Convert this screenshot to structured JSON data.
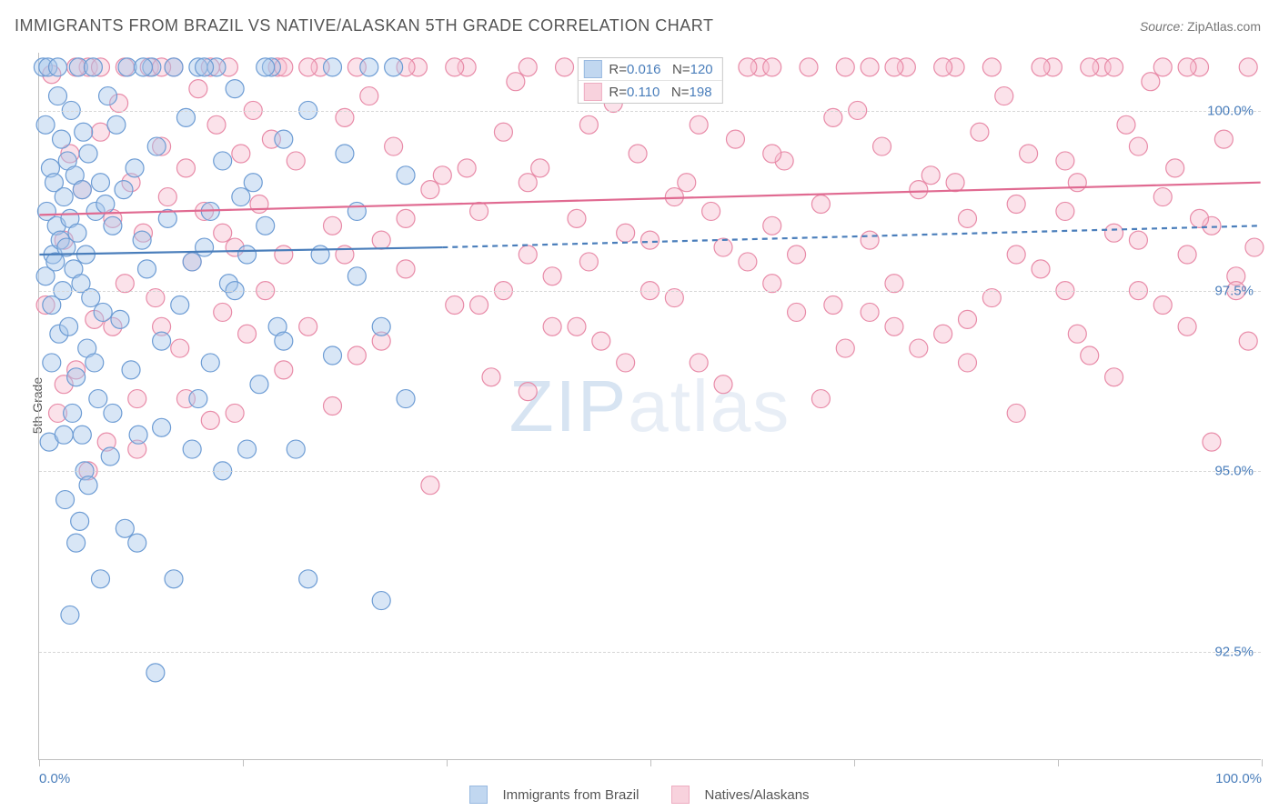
{
  "title": "IMMIGRANTS FROM BRAZIL VS NATIVE/ALASKAN 5TH GRADE CORRELATION CHART",
  "source_label": "Source:",
  "source_value": "ZipAtlas.com",
  "y_axis_label": "5th Grade",
  "watermark_left": "ZIP",
  "watermark_right": "atlas",
  "chart": {
    "type": "scatter",
    "background_color": "#ffffff",
    "grid_color": "#d6d6d6",
    "axis_color": "#bfbfbf",
    "tick_label_color": "#4a7ebb",
    "tick_fontsize": 15,
    "title_fontsize": 18,
    "title_color": "#555555",
    "xlim": [
      0,
      100
    ],
    "ylim": [
      91.0,
      100.8
    ],
    "x_ticks": [
      0,
      16.67,
      33.33,
      50,
      66.67,
      83.33,
      100
    ],
    "x_tick_labels": {
      "0": "0.0%",
      "100": "100.0%"
    },
    "y_gridlines": [
      92.5,
      95.0,
      97.5,
      100.0
    ],
    "y_tick_labels": [
      "92.5%",
      "95.0%",
      "97.5%",
      "100.0%"
    ],
    "marker_radius": 10,
    "marker_opacity": 0.45,
    "marker_stroke_width": 1.2,
    "trend_line_width": 2.2,
    "trend_dash_pattern": "6,5"
  },
  "series": [
    {
      "id": "brazil",
      "label": "Immigrants from Brazil",
      "fill_color": "#a8c7eb",
      "stroke_color": "#6d9cd4",
      "line_color": "#4a7ebb",
      "R": "0.016",
      "N": "120",
      "trend": {
        "x0": 0,
        "y0": 98.0,
        "x1_solid": 33,
        "y1_solid": 98.1,
        "x1": 100,
        "y1": 98.4
      },
      "points": [
        [
          0.3,
          100.6
        ],
        [
          0.5,
          97.7
        ],
        [
          0.6,
          98.6
        ],
        [
          0.7,
          100.6
        ],
        [
          0.8,
          95.4
        ],
        [
          0.9,
          99.2
        ],
        [
          1.0,
          97.3
        ],
        [
          1.1,
          98.0
        ],
        [
          1.2,
          99.0
        ],
        [
          1.3,
          97.9
        ],
        [
          1.4,
          98.4
        ],
        [
          1.5,
          100.6
        ],
        [
          1.6,
          96.9
        ],
        [
          1.7,
          98.2
        ],
        [
          1.8,
          99.6
        ],
        [
          1.9,
          97.5
        ],
        [
          2.0,
          98.8
        ],
        [
          2.1,
          94.6
        ],
        [
          2.2,
          98.1
        ],
        [
          2.3,
          99.3
        ],
        [
          2.4,
          97.0
        ],
        [
          2.5,
          98.5
        ],
        [
          2.6,
          100.0
        ],
        [
          2.7,
          95.8
        ],
        [
          2.8,
          97.8
        ],
        [
          2.9,
          99.1
        ],
        [
          3.0,
          96.3
        ],
        [
          3.1,
          98.3
        ],
        [
          3.2,
          100.6
        ],
        [
          3.3,
          94.3
        ],
        [
          3.4,
          97.6
        ],
        [
          3.5,
          98.9
        ],
        [
          3.6,
          99.7
        ],
        [
          3.7,
          95.0
        ],
        [
          3.8,
          98.0
        ],
        [
          3.9,
          96.7
        ],
        [
          4.0,
          99.4
        ],
        [
          4.2,
          97.4
        ],
        [
          4.4,
          100.6
        ],
        [
          4.6,
          98.6
        ],
        [
          4.8,
          96.0
        ],
        [
          5.0,
          99.0
        ],
        [
          5.2,
          97.2
        ],
        [
          5.4,
          98.7
        ],
        [
          5.6,
          100.2
        ],
        [
          5.8,
          95.2
        ],
        [
          6.0,
          98.4
        ],
        [
          6.3,
          99.8
        ],
        [
          6.6,
          97.1
        ],
        [
          6.9,
          98.9
        ],
        [
          7.2,
          100.6
        ],
        [
          7.5,
          96.4
        ],
        [
          7.8,
          99.2
        ],
        [
          8.1,
          95.5
        ],
        [
          8.4,
          98.2
        ],
        [
          8.8,
          97.8
        ],
        [
          9.2,
          100.6
        ],
        [
          9.6,
          99.5
        ],
        [
          10.0,
          96.8
        ],
        [
          10.5,
          98.5
        ],
        [
          11.0,
          100.6
        ],
        [
          11.5,
          97.3
        ],
        [
          12.0,
          99.9
        ],
        [
          12.5,
          95.3
        ],
        [
          13.0,
          100.6
        ],
        [
          13.5,
          98.1
        ],
        [
          14.0,
          96.5
        ],
        [
          14.5,
          100.6
        ],
        [
          15.0,
          99.3
        ],
        [
          15.5,
          97.6
        ],
        [
          16.0,
          100.3
        ],
        [
          16.5,
          98.8
        ],
        [
          17.0,
          95.3
        ],
        [
          17.5,
          99.0
        ],
        [
          18.0,
          96.2
        ],
        [
          18.5,
          98.4
        ],
        [
          19.0,
          100.6
        ],
        [
          19.5,
          97.0
        ],
        [
          20.0,
          99.6
        ],
        [
          21.0,
          95.3
        ],
        [
          22.0,
          100.0
        ],
        [
          23.0,
          98.0
        ],
        [
          24.0,
          96.6
        ],
        [
          25.0,
          99.4
        ],
        [
          26.0,
          97.7
        ],
        [
          27.0,
          100.6
        ],
        [
          28.0,
          93.2
        ],
        [
          29.0,
          100.6
        ],
        [
          30.0,
          99.1
        ],
        [
          5.0,
          93.5
        ],
        [
          7.0,
          94.2
        ],
        [
          9.5,
          92.2
        ],
        [
          11.0,
          93.5
        ],
        [
          4.0,
          94.8
        ],
        [
          2.5,
          93.0
        ],
        [
          3.5,
          95.5
        ],
        [
          1.0,
          96.5
        ],
        [
          0.5,
          99.8
        ],
        [
          1.5,
          100.2
        ],
        [
          2.0,
          95.5
        ],
        [
          3.0,
          94.0
        ],
        [
          4.5,
          96.5
        ],
        [
          6.0,
          95.8
        ],
        [
          8.0,
          94.0
        ],
        [
          10.0,
          95.6
        ],
        [
          12.5,
          97.9
        ],
        [
          14.0,
          98.6
        ],
        [
          16.0,
          97.5
        ],
        [
          18.5,
          100.6
        ],
        [
          22.0,
          93.5
        ],
        [
          13.0,
          96.0
        ],
        [
          15.0,
          95.0
        ],
        [
          17.0,
          98.0
        ],
        [
          20.0,
          96.8
        ],
        [
          24.0,
          100.6
        ],
        [
          26.0,
          98.6
        ],
        [
          28.0,
          97.0
        ],
        [
          30.0,
          96.0
        ],
        [
          13.5,
          100.6
        ],
        [
          8.5,
          100.6
        ]
      ]
    },
    {
      "id": "natives",
      "label": "Natives/Alaskans",
      "fill_color": "#f6bfd0",
      "stroke_color": "#e88ba8",
      "line_color": "#e06a91",
      "R": "0.110",
      "N": "198",
      "trend": {
        "x0": 0,
        "y0": 98.55,
        "x1_solid": 100,
        "y1_solid": 99.0,
        "x1": 100,
        "y1": 99.0
      },
      "points": [
        [
          0.5,
          97.3
        ],
        [
          1.0,
          100.5
        ],
        [
          1.5,
          95.8
        ],
        [
          2.0,
          98.2
        ],
        [
          2.5,
          99.4
        ],
        [
          3.0,
          96.4
        ],
        [
          3.5,
          98.9
        ],
        [
          4.0,
          100.6
        ],
        [
          4.5,
          97.1
        ],
        [
          5.0,
          99.7
        ],
        [
          5.5,
          95.4
        ],
        [
          6.0,
          98.5
        ],
        [
          6.5,
          100.1
        ],
        [
          7.0,
          97.6
        ],
        [
          7.5,
          99.0
        ],
        [
          8.0,
          96.0
        ],
        [
          8.5,
          98.3
        ],
        [
          9.0,
          100.6
        ],
        [
          9.5,
          97.4
        ],
        [
          10.0,
          99.5
        ],
        [
          10.5,
          98.8
        ],
        [
          11.0,
          100.6
        ],
        [
          11.5,
          96.7
        ],
        [
          12.0,
          99.2
        ],
        [
          12.5,
          97.9
        ],
        [
          13.0,
          100.3
        ],
        [
          13.5,
          98.6
        ],
        [
          14.0,
          95.7
        ],
        [
          14.5,
          99.8
        ],
        [
          15.0,
          97.2
        ],
        [
          15.5,
          100.6
        ],
        [
          16.0,
          98.1
        ],
        [
          16.5,
          99.4
        ],
        [
          17.0,
          96.9
        ],
        [
          17.5,
          100.0
        ],
        [
          18.0,
          98.7
        ],
        [
          18.5,
          97.5
        ],
        [
          19.0,
          99.6
        ],
        [
          19.5,
          100.6
        ],
        [
          20.0,
          98.0
        ],
        [
          21.0,
          99.3
        ],
        [
          22.0,
          97.0
        ],
        [
          23.0,
          100.6
        ],
        [
          24.0,
          98.4
        ],
        [
          25.0,
          99.9
        ],
        [
          26.0,
          96.6
        ],
        [
          27.0,
          100.2
        ],
        [
          28.0,
          98.2
        ],
        [
          29.0,
          99.5
        ],
        [
          30.0,
          97.8
        ],
        [
          31.0,
          100.6
        ],
        [
          32.0,
          98.9
        ],
        [
          33.0,
          99.1
        ],
        [
          34.0,
          97.3
        ],
        [
          35.0,
          100.6
        ],
        [
          36.0,
          98.6
        ],
        [
          37.0,
          96.3
        ],
        [
          38.0,
          99.7
        ],
        [
          39.0,
          100.4
        ],
        [
          40.0,
          98.0
        ],
        [
          41.0,
          99.2
        ],
        [
          42.0,
          97.7
        ],
        [
          43.0,
          100.6
        ],
        [
          44.0,
          98.5
        ],
        [
          45.0,
          99.8
        ],
        [
          46.0,
          96.8
        ],
        [
          47.0,
          100.1
        ],
        [
          48.0,
          98.3
        ],
        [
          49.0,
          99.4
        ],
        [
          50.0,
          97.5
        ],
        [
          51.0,
          100.6
        ],
        [
          52.0,
          98.8
        ],
        [
          53.0,
          99.0
        ],
        [
          54.0,
          96.5
        ],
        [
          55.0,
          100.3
        ],
        [
          56.0,
          98.1
        ],
        [
          57.0,
          99.6
        ],
        [
          58.0,
          97.9
        ],
        [
          59.0,
          100.6
        ],
        [
          60.0,
          98.4
        ],
        [
          61.0,
          99.3
        ],
        [
          62.0,
          97.2
        ],
        [
          63.0,
          100.6
        ],
        [
          64.0,
          98.7
        ],
        [
          65.0,
          99.9
        ],
        [
          66.0,
          96.7
        ],
        [
          67.0,
          100.0
        ],
        [
          68.0,
          98.2
        ],
        [
          69.0,
          99.5
        ],
        [
          70.0,
          97.6
        ],
        [
          71.0,
          100.6
        ],
        [
          72.0,
          98.9
        ],
        [
          73.0,
          99.1
        ],
        [
          74.0,
          96.9
        ],
        [
          75.0,
          100.6
        ],
        [
          76.0,
          98.5
        ],
        [
          77.0,
          99.7
        ],
        [
          78.0,
          97.4
        ],
        [
          79.0,
          100.2
        ],
        [
          80.0,
          98.0
        ],
        [
          81.0,
          99.4
        ],
        [
          82.0,
          97.8
        ],
        [
          83.0,
          100.6
        ],
        [
          84.0,
          98.6
        ],
        [
          85.0,
          99.0
        ],
        [
          86.0,
          96.6
        ],
        [
          87.0,
          100.6
        ],
        [
          88.0,
          98.3
        ],
        [
          89.0,
          99.8
        ],
        [
          90.0,
          97.5
        ],
        [
          91.0,
          100.4
        ],
        [
          92.0,
          98.8
        ],
        [
          93.0,
          99.2
        ],
        [
          94.0,
          97.0
        ],
        [
          95.0,
          100.6
        ],
        [
          96.0,
          98.4
        ],
        [
          97.0,
          99.6
        ],
        [
          98.0,
          97.7
        ],
        [
          99.0,
          100.6
        ],
        [
          99.5,
          98.1
        ],
        [
          2.0,
          96.2
        ],
        [
          4.0,
          95.0
        ],
        [
          6.0,
          97.0
        ],
        [
          8.0,
          95.3
        ],
        [
          12.0,
          96.0
        ],
        [
          16.0,
          95.8
        ],
        [
          20.0,
          96.4
        ],
        [
          24.0,
          95.9
        ],
        [
          28.0,
          96.8
        ],
        [
          32.0,
          94.8
        ],
        [
          36.0,
          97.3
        ],
        [
          40.0,
          96.1
        ],
        [
          44.0,
          97.0
        ],
        [
          48.0,
          96.5
        ],
        [
          52.0,
          97.4
        ],
        [
          56.0,
          96.2
        ],
        [
          60.0,
          97.6
        ],
        [
          64.0,
          96.0
        ],
        [
          68.0,
          97.2
        ],
        [
          72.0,
          96.7
        ],
        [
          76.0,
          97.1
        ],
        [
          80.0,
          95.8
        ],
        [
          84.0,
          97.5
        ],
        [
          88.0,
          96.3
        ],
        [
          92.0,
          97.3
        ],
        [
          96.0,
          95.4
        ],
        [
          99.0,
          96.8
        ],
        [
          98.0,
          97.5
        ],
        [
          94.0,
          98.0
        ],
        [
          90.0,
          98.2
        ],
        [
          3.0,
          100.6
        ],
        [
          5.0,
          100.6
        ],
        [
          7.0,
          100.6
        ],
        [
          10.0,
          100.6
        ],
        [
          15.0,
          98.3
        ],
        [
          25.0,
          98.0
        ],
        [
          35.0,
          99.2
        ],
        [
          45.0,
          97.9
        ],
        [
          55.0,
          98.6
        ],
        [
          65.0,
          97.3
        ],
        [
          75.0,
          99.0
        ],
        [
          85.0,
          96.9
        ],
        [
          95.0,
          98.5
        ],
        [
          30.0,
          100.6
        ],
        [
          40.0,
          100.6
        ],
        [
          50.0,
          100.6
        ],
        [
          60.0,
          100.6
        ],
        [
          70.0,
          97.0
        ],
        [
          78.0,
          100.6
        ],
        [
          86.0,
          100.6
        ],
        [
          10.0,
          97.0
        ],
        [
          20.0,
          100.6
        ],
        [
          30.0,
          98.5
        ],
        [
          40.0,
          99.0
        ],
        [
          50.0,
          98.2
        ],
        [
          60.0,
          99.4
        ],
        [
          70.0,
          100.6
        ],
        [
          80.0,
          98.7
        ],
        [
          90.0,
          99.5
        ],
        [
          22.0,
          100.6
        ],
        [
          34.0,
          100.6
        ],
        [
          46.0,
          100.6
        ],
        [
          58.0,
          100.6
        ],
        [
          66.0,
          100.6
        ],
        [
          74.0,
          100.6
        ],
        [
          82.0,
          100.6
        ],
        [
          88.0,
          100.6
        ],
        [
          94.0,
          100.6
        ],
        [
          38.0,
          97.5
        ],
        [
          62.0,
          98.0
        ],
        [
          14.0,
          100.6
        ],
        [
          26.0,
          100.6
        ],
        [
          42.0,
          97.0
        ],
        [
          54.0,
          99.8
        ],
        [
          68.0,
          100.6
        ],
        [
          76.0,
          96.5
        ],
        [
          84.0,
          99.3
        ],
        [
          92.0,
          100.6
        ]
      ]
    }
  ],
  "rn_legend": {
    "r_letter": "R",
    "eq": " = ",
    "n_letter": "N"
  },
  "bottom_legend_labels": [
    "Immigrants from Brazil",
    "Natives/Alaskans"
  ]
}
